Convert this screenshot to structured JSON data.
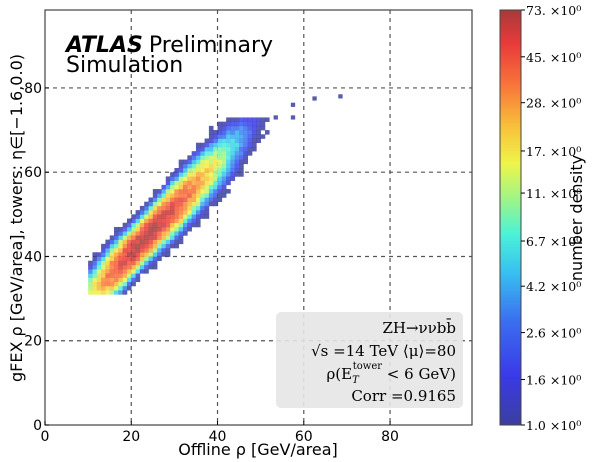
{
  "chart_data": {
    "type": "heatmap",
    "title_lines": [
      "ATLAS",
      "Preliminary",
      "Simulation"
    ],
    "xlabel": "Offline ρ [GeV/area]",
    "ylabel": "gFEX ρ [GeV/area], towers: η∈[−1.6,0.0)",
    "xlim": [
      0,
      99
    ],
    "ylim": [
      0,
      98.5
    ],
    "xticks": [
      0,
      20,
      40,
      60,
      80
    ],
    "yticks": [
      0,
      20,
      40,
      60,
      80
    ],
    "grid": true,
    "colorbar": {
      "label": "number density",
      "scale": "log",
      "range": [
        1.0,
        73.0
      ],
      "ticks": [
        {
          "value": 1.0,
          "label": "1.0 ×10⁰"
        },
        {
          "value": 1.6,
          "label": "1.6 ×10⁰"
        },
        {
          "value": 2.6,
          "label": "2.6 ×10⁰"
        },
        {
          "value": 4.2,
          "label": "4.2 ×10⁰"
        },
        {
          "value": 6.7,
          "label": "6.7 ×10⁰"
        },
        {
          "value": 11.0,
          "label": "11. ×10⁰"
        },
        {
          "value": 17.0,
          "label": "17. ×10⁰"
        },
        {
          "value": 28.0,
          "label": "28. ×10⁰"
        },
        {
          "value": 45.0,
          "label": "45. ×10⁰"
        },
        {
          "value": 73.0,
          "label": "73. ×10⁰"
        }
      ]
    },
    "annotation": {
      "lines": [
        "ZH→ννbb̄",
        "√s =14 TeV ⟨μ⟩=80",
        "ρ(E_T^tower < 6 GeV)",
        "Corr =0.9165"
      ],
      "placement": "bottom-right"
    },
    "distribution": {
      "description": "2D histogram, strongly correlated along y ≈ 1.05x + 20",
      "bin_width": 1.0,
      "peak": {
        "x": 22,
        "y": 44,
        "density": 73
      },
      "x_extent": [
        10,
        68
      ],
      "y_extent": [
        31,
        78
      ],
      "correlation": 0.9165
    },
    "outlier_points": [
      {
        "x": 68,
        "y": 77.5,
        "density": 1
      },
      {
        "x": 62,
        "y": 77,
        "density": 1
      },
      {
        "x": 57,
        "y": 75.5,
        "density": 1
      },
      {
        "x": 53,
        "y": 72.5,
        "density": 1
      },
      {
        "x": 57,
        "y": 72.5,
        "density": 1
      }
    ]
  }
}
